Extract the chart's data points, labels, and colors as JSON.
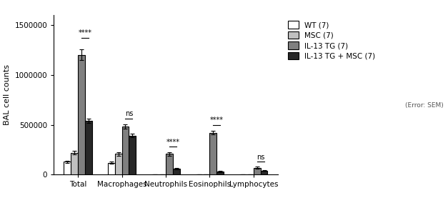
{
  "categories": [
    "Total",
    "Macrophages",
    "Neutrophils",
    "Eosinophils",
    "Lymphocytes"
  ],
  "groups": [
    "WT (7)",
    "MSC (7)",
    "IL-13 TG (7)",
    "IL-13 TG + MSC (7)"
  ],
  "colors": [
    "#ffffff",
    "#c0c0c0",
    "#808080",
    "#282828"
  ],
  "edge_colors": [
    "#000000",
    "#000000",
    "#000000",
    "#000000"
  ],
  "values": [
    [
      130000,
      220000,
      1200000,
      540000
    ],
    [
      120000,
      210000,
      480000,
      390000
    ],
    [
      5000,
      5000,
      210000,
      60000
    ],
    [
      5000,
      5000,
      420000,
      30000
    ],
    [
      2000,
      2000,
      70000,
      40000
    ]
  ],
  "errors": [
    [
      10000,
      20000,
      55000,
      20000
    ],
    [
      12000,
      18000,
      22000,
      18000
    ],
    [
      1000,
      1000,
      18000,
      8000
    ],
    [
      1000,
      1000,
      18000,
      5000
    ],
    [
      500,
      500,
      8000,
      5000
    ]
  ],
  "ylabel": "BAL cell counts",
  "ylim": [
    0,
    1600000
  ],
  "yticks": [
    0,
    500000,
    1000000,
    1500000
  ],
  "ytick_labels": [
    "0",
    "500000",
    "1000000",
    "1500000"
  ],
  "significance": [
    {
      "cat_idx": 0,
      "bar1": 2,
      "bar2": 3,
      "label": "****",
      "y": 1370000
    },
    {
      "cat_idx": 1,
      "bar1": 2,
      "bar2": 3,
      "label": "ns",
      "y": 560000
    },
    {
      "cat_idx": 2,
      "bar1": 2,
      "bar2": 3,
      "label": "****",
      "y": 280000
    },
    {
      "cat_idx": 3,
      "bar1": 2,
      "bar2": 3,
      "label": "****",
      "y": 500000
    },
    {
      "cat_idx": 4,
      "bar1": 2,
      "bar2": 3,
      "label": "ns",
      "y": 130000
    }
  ],
  "error_note": "(Error: SEM)",
  "background_color": "#ffffff",
  "bar_width": 0.16,
  "legend_fontsize": 7.5,
  "axis_fontsize": 8,
  "tick_fontsize": 7.5
}
